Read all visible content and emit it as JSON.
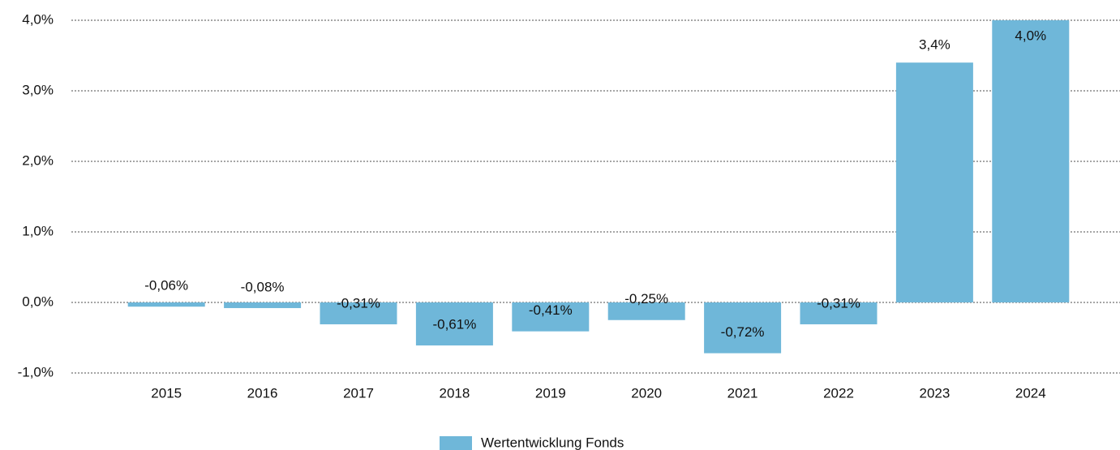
{
  "chart_data": {
    "type": "bar",
    "categories": [
      "2015",
      "2016",
      "2017",
      "2018",
      "2019",
      "2020",
      "2021",
      "2022",
      "2023",
      "2024"
    ],
    "series": [
      {
        "name": "Wertentwicklung Fonds",
        "color": "#6fb7d9",
        "values": [
          -0.06,
          -0.08,
          -0.31,
          -0.61,
          -0.41,
          -0.25,
          -0.72,
          -0.31,
          3.4,
          4.0
        ],
        "value_labels": [
          "-0,06%",
          "-0,08%",
          "-0,31%",
          "-0,61%",
          "-0,41%",
          "-0,25%",
          "-0,72%",
          "-0,31%",
          "3,4%",
          "4,0%"
        ]
      }
    ],
    "ylim": [
      -1,
      4
    ],
    "yticks": [
      {
        "value": -1,
        "label": "-1,0%"
      },
      {
        "value": 0,
        "label": "0,0%"
      },
      {
        "value": 1,
        "label": "1,0%"
      },
      {
        "value": 2,
        "label": "2,0%"
      },
      {
        "value": 3,
        "label": "3,0%"
      },
      {
        "value": 4,
        "label": "4,0%"
      }
    ],
    "grid": true,
    "legend": "bottom"
  }
}
